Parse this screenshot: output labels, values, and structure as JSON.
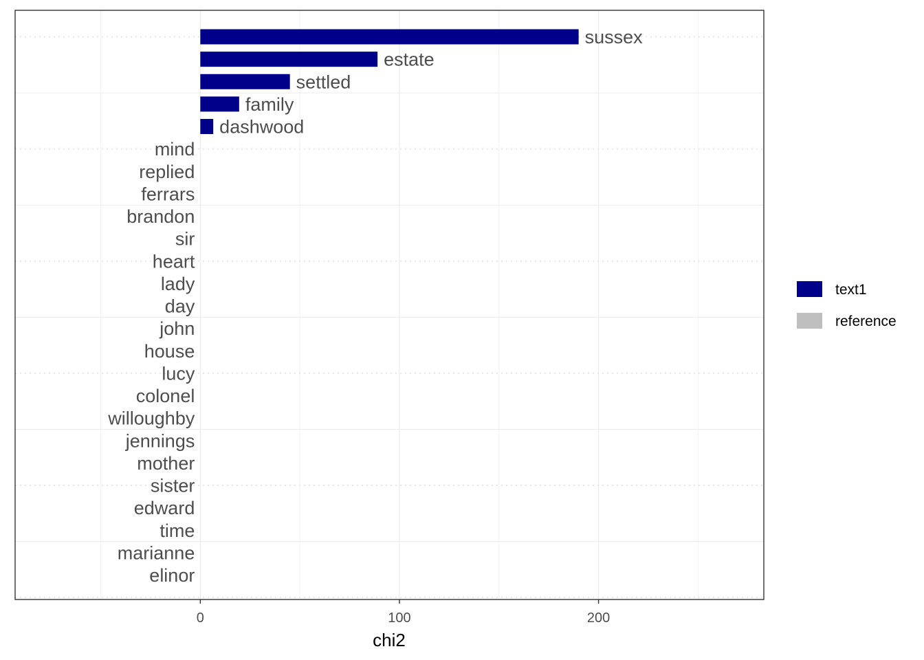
{
  "chart_data": {
    "type": "bar",
    "orientation": "horizontal",
    "title": "",
    "xlabel": "chi2",
    "ylabel": "",
    "xlim": [
      -93,
      283
    ],
    "x_ticks": [
      0,
      100,
      200
    ],
    "grid": true,
    "legend_position": "right",
    "series": [
      {
        "name": "text1",
        "color": "#00008b"
      },
      {
        "name": "reference",
        "color": "#bebebe"
      }
    ],
    "bars": [
      {
        "label": "sussex",
        "value": 190,
        "series": "text1"
      },
      {
        "label": "estate",
        "value": 89,
        "series": "text1"
      },
      {
        "label": "settled",
        "value": 45,
        "series": "text1"
      },
      {
        "label": "family",
        "value": 19.5,
        "series": "text1"
      },
      {
        "label": "dashwood",
        "value": 6.5,
        "series": "text1"
      },
      {
        "label": "mind",
        "value": 0,
        "series": "reference"
      },
      {
        "label": "replied",
        "value": 0,
        "series": "reference"
      },
      {
        "label": "ferrars",
        "value": 0,
        "series": "reference"
      },
      {
        "label": "brandon",
        "value": 0,
        "series": "reference"
      },
      {
        "label": "sir",
        "value": 0,
        "series": "reference"
      },
      {
        "label": "heart",
        "value": 0,
        "series": "reference"
      },
      {
        "label": "lady",
        "value": 0,
        "series": "reference"
      },
      {
        "label": "day",
        "value": 0,
        "series": "reference"
      },
      {
        "label": "john",
        "value": 0,
        "series": "reference"
      },
      {
        "label": "house",
        "value": 0,
        "series": "reference"
      },
      {
        "label": "lucy",
        "value": 0,
        "series": "reference"
      },
      {
        "label": "colonel",
        "value": 0,
        "series": "reference"
      },
      {
        "label": "willoughby",
        "value": 0,
        "series": "reference"
      },
      {
        "label": "jennings",
        "value": 0,
        "series": "reference"
      },
      {
        "label": "mother",
        "value": 0,
        "series": "reference"
      },
      {
        "label": "sister",
        "value": 0,
        "series": "reference"
      },
      {
        "label": "edward",
        "value": 0,
        "series": "reference"
      },
      {
        "label": "time",
        "value": 0,
        "series": "reference"
      },
      {
        "label": "marianne",
        "value": 0,
        "series": "reference"
      },
      {
        "label": "elinor",
        "value": 0,
        "series": "reference"
      }
    ]
  }
}
